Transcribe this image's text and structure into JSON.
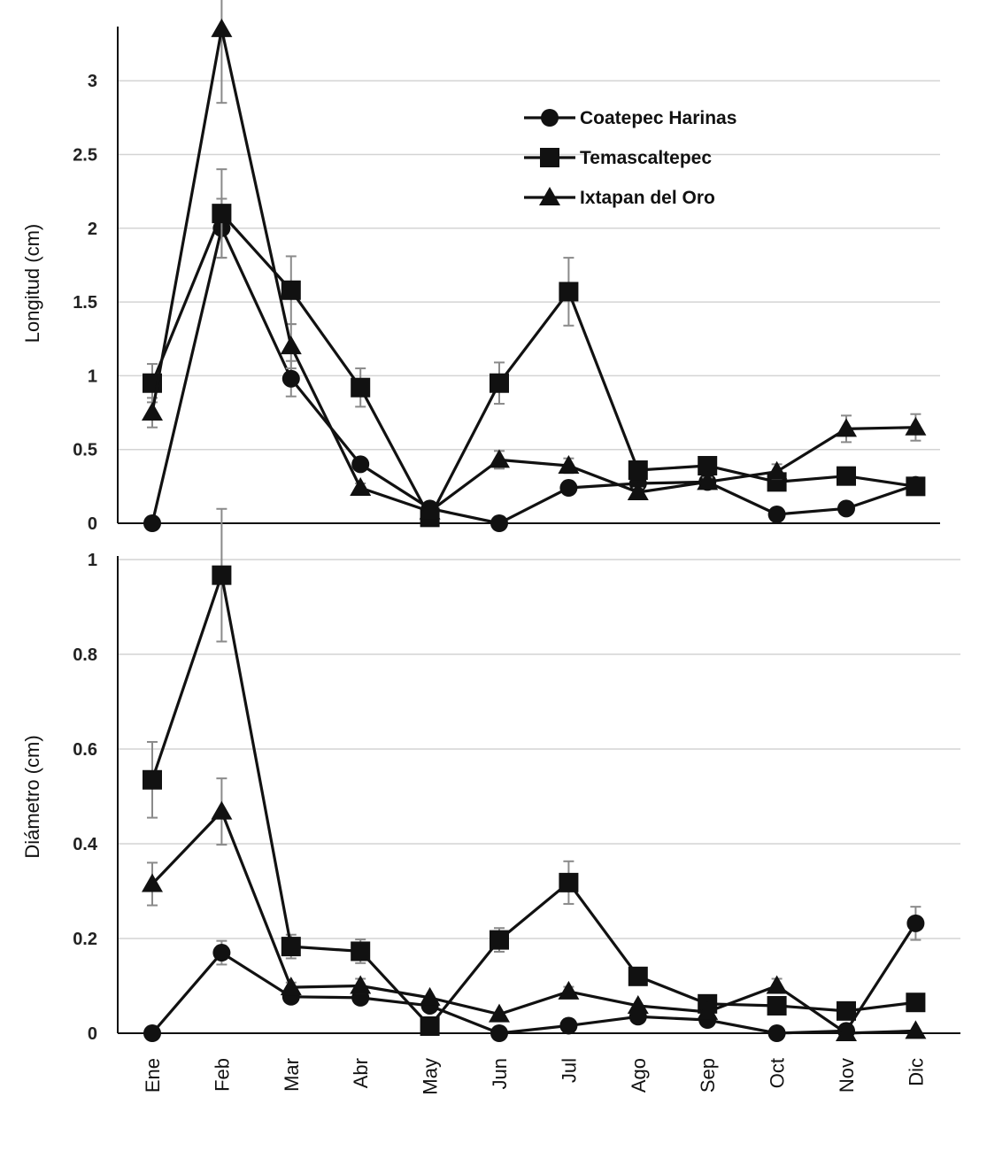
{
  "chart_data": [
    {
      "type": "line",
      "title": "",
      "xlabel": "",
      "ylabel": "Longitud (cm)",
      "ylim": [
        0,
        3.4
      ],
      "yticks": [
        "0",
        "0.5",
        "1",
        "1.5",
        "2",
        "2.5",
        "3"
      ],
      "categories": [
        "Ene",
        "Feb",
        "Mar",
        "Abr",
        "May",
        "Jun",
        "Jul",
        "Ago",
        "Sep",
        "Oct",
        "Nov",
        "Dic"
      ],
      "legend": "top-right",
      "grid": true,
      "series": [
        {
          "name": "Coatepec Harinas",
          "marker": "circle",
          "values": [
            0.0,
            2.0,
            0.98,
            0.4,
            0.1,
            0.0,
            0.24,
            0.27,
            0.28,
            0.06,
            0.1,
            0.26
          ],
          "errors": [
            0,
            0.2,
            0.12,
            0.04,
            0,
            0,
            0.03,
            0,
            0.03,
            0,
            0,
            0.03
          ]
        },
        {
          "name": "Temascaltepec",
          "marker": "square",
          "values": [
            0.95,
            2.1,
            1.58,
            0.92,
            0.04,
            0.95,
            1.57,
            0.36,
            0.39,
            0.28,
            0.32,
            0.25
          ],
          "errors": [
            0.13,
            0.3,
            0.23,
            0.13,
            0,
            0.14,
            0.23,
            0.03,
            0.03,
            0.03,
            0.03,
            0.03
          ]
        },
        {
          "name": "Ixtapan del Oro",
          "marker": "triangle",
          "values": [
            0.75,
            3.35,
            1.2,
            0.24,
            0.08,
            0.43,
            0.39,
            0.21,
            0.28,
            0.35,
            0.64,
            0.65
          ],
          "errors": [
            0.1,
            0.5,
            0.15,
            0.03,
            0,
            0.06,
            0.05,
            0.03,
            0.03,
            0.05,
            0.09,
            0.09
          ]
        }
      ]
    },
    {
      "type": "line",
      "title": "",
      "xlabel": "",
      "ylabel": "Diámetro (cm)",
      "ylim": [
        0,
        1
      ],
      "yticks": [
        "0",
        "0.2",
        "0.4",
        "0.6",
        "0.8",
        "1"
      ],
      "categories": [
        "Ene",
        "Feb",
        "Mar",
        "Abr",
        "May",
        "Jun",
        "Jul",
        "Ago",
        "Sep",
        "Oct",
        "Nov",
        "Dic"
      ],
      "grid": true,
      "series": [
        {
          "name": "Coatepec Harinas",
          "marker": "circle",
          "values": [
            0.0,
            0.17,
            0.077,
            0.075,
            0.058,
            0.0,
            0.016,
            0.035,
            0.028,
            0.0,
            0.005,
            0.232
          ],
          "errors": [
            0,
            0.025,
            0.008,
            0.008,
            0,
            0,
            0,
            0,
            0,
            0,
            0,
            0.035
          ]
        },
        {
          "name": "Temascaltepec",
          "marker": "square",
          "values": [
            0.535,
            0.967,
            0.183,
            0.173,
            0.015,
            0.197,
            0.318,
            0.12,
            0.062,
            0.058,
            0.047,
            0.065
          ],
          "errors": [
            0.08,
            0.14,
            0.025,
            0.025,
            0,
            0.025,
            0.045,
            0.01,
            0.005,
            0.005,
            0.005,
            0.005
          ]
        },
        {
          "name": "Ixtapan del Oro",
          "marker": "triangle",
          "values": [
            0.315,
            0.468,
            0.097,
            0.1,
            0.075,
            0.04,
            0.088,
            0.058,
            0.045,
            0.1,
            0.0,
            0.005
          ],
          "errors": [
            0.045,
            0.07,
            0.01,
            0.015,
            0,
            0,
            0.01,
            0,
            0,
            0.015,
            0,
            0
          ]
        }
      ]
    }
  ]
}
